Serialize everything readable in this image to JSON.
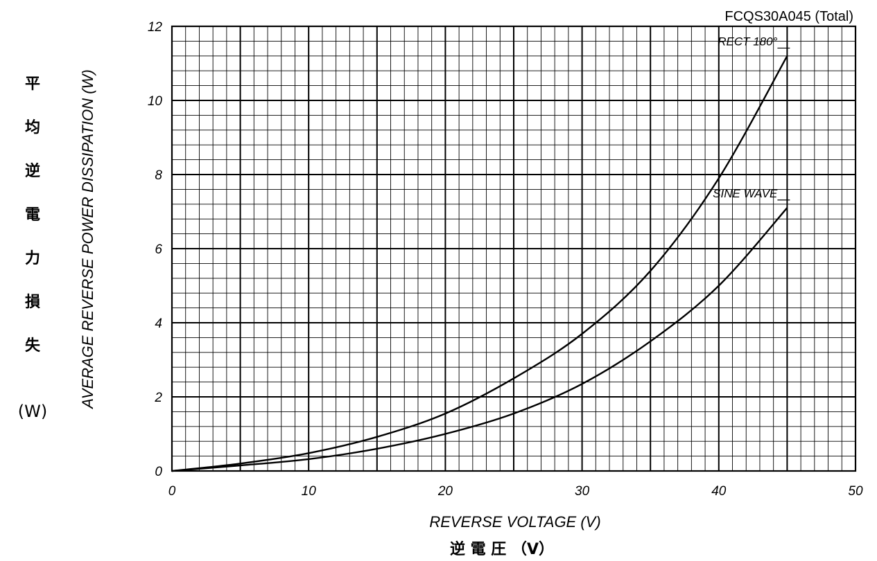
{
  "chart_data": {
    "type": "line",
    "title": "FCQS30A045 (Total)",
    "xlabel": "REVERSE VOLTAGE (V)",
    "xlabel_jp": "逆 電 圧 （V）",
    "ylabel": "AVERAGE REVERSE POWER DISSIPATION (W)",
    "ylabel_jp": [
      "平",
      "均",
      "逆",
      "電",
      "力",
      "損",
      "失"
    ],
    "ylabel_jp_unit": "(W)",
    "xlim": [
      0,
      50
    ],
    "ylim": [
      0,
      12
    ],
    "x_ticks": [
      "0",
      "10",
      "20",
      "30",
      "40",
      "50"
    ],
    "y_ticks": [
      "0",
      "2",
      "4",
      "6",
      "8",
      "10",
      "12"
    ],
    "grid": true,
    "series": [
      {
        "name": "RECT 180°",
        "x": [
          0,
          5,
          10,
          15,
          20,
          25,
          30,
          35,
          40,
          45
        ],
        "y": [
          0,
          0.2,
          0.48,
          0.92,
          1.55,
          2.5,
          3.7,
          5.4,
          7.9,
          11.2
        ]
      },
      {
        "name": "SINE WAVE",
        "x": [
          0,
          5,
          10,
          15,
          20,
          25,
          30,
          35,
          40,
          45
        ],
        "y": [
          0,
          0.15,
          0.32,
          0.6,
          1.0,
          1.55,
          2.35,
          3.5,
          5.0,
          7.1
        ]
      }
    ]
  }
}
